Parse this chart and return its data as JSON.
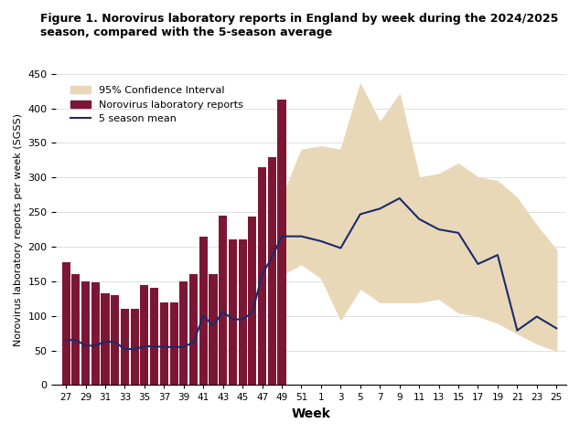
{
  "title": "Figure 1. Norovirus laboratory reports in England by week during the 2024/2025\nseason, compared with the 5-season average",
  "ylabel": "Norovirus laboratory reports per week (SGSS)",
  "xlabel": "Week",
  "bar_weeks": [
    27,
    28,
    29,
    30,
    31,
    32,
    33,
    34,
    35,
    36,
    37,
    38,
    39,
    40,
    41,
    42,
    43,
    44,
    45,
    46,
    47,
    48,
    49
  ],
  "bar_values": [
    178,
    160,
    150,
    148,
    132,
    130,
    110,
    110,
    145,
    140,
    120,
    120,
    150,
    160,
    215,
    160,
    245,
    210,
    210,
    243,
    315,
    330,
    413
  ],
  "bar_color": "#7B1734",
  "ci_x": [
    49,
    51,
    53,
    55,
    57,
    59,
    61,
    63,
    65,
    67,
    69,
    71,
    73,
    75,
    77
  ],
  "ci_upper": [
    270,
    340,
    345,
    340,
    435,
    380,
    420,
    300,
    305,
    320,
    300,
    295,
    270,
    230,
    195
  ],
  "ci_lower": [
    160,
    175,
    155,
    95,
    140,
    120,
    120,
    120,
    125,
    105,
    100,
    90,
    75,
    60,
    50
  ],
  "mean_x": [
    27,
    28,
    29,
    30,
    31,
    32,
    33,
    34,
    35,
    36,
    37,
    38,
    39,
    40,
    41,
    42,
    43,
    44,
    45,
    46,
    47,
    48,
    49,
    51,
    53,
    55,
    57,
    59,
    61,
    63,
    65,
    67,
    69,
    71,
    73,
    75,
    77
  ],
  "mean_values": [
    65,
    65,
    57,
    57,
    63,
    62,
    52,
    52,
    56,
    56,
    55,
    55,
    55,
    62,
    100,
    86,
    106,
    95,
    95,
    105,
    160,
    185,
    215,
    215,
    208,
    198,
    247,
    255,
    270,
    240,
    225,
    220,
    175,
    188,
    79,
    99,
    82
  ],
  "line_color": "#1B2A6B",
  "ci_color": "#E8D8B8",
  "ylim": [
    0,
    450
  ],
  "yticks": [
    0,
    50,
    100,
    150,
    200,
    250,
    300,
    350,
    400,
    450
  ],
  "tick_positions": [
    27,
    29,
    31,
    33,
    35,
    37,
    39,
    41,
    43,
    45,
    47,
    49,
    51,
    53,
    55,
    57,
    59,
    61,
    63,
    65,
    67,
    69,
    71,
    73,
    75,
    77
  ],
  "tick_labels": [
    "27",
    "29",
    "31",
    "33",
    "35",
    "37",
    "39",
    "41",
    "43",
    "45",
    "47",
    "49",
    "51",
    "1",
    "3",
    "5",
    "7",
    "9",
    "11",
    "13",
    "15",
    "17",
    "19",
    "21",
    "23",
    "25"
  ]
}
